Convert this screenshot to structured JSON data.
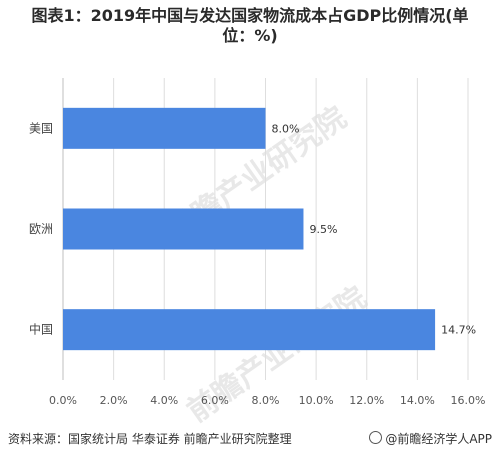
{
  "chart_data": {
    "type": "bar",
    "orientation": "horizontal",
    "title": "图表1：2019年中国与发达国家物流成本占GDP比例情况(单位：%)",
    "title_line1": "图表1：2019年中国与发达国家物流成本占GDP比例情况(单",
    "title_line2": "位：%)",
    "categories": [
      "美国",
      "欧洲",
      "中国"
    ],
    "values": [
      8.0,
      9.5,
      14.7
    ],
    "value_labels": [
      "8.0%",
      "9.5%",
      "14.7%"
    ],
    "xlim": [
      0,
      16
    ],
    "xticks": [
      "0.0%",
      "2.0%",
      "4.0%",
      "6.0%",
      "8.0%",
      "10.0%",
      "12.0%",
      "14.0%",
      "16.0%"
    ],
    "grid": true,
    "bar_color": "#4a86e0"
  },
  "footer": {
    "source": "资料来源：国家统计局 华泰证券 前瞻产业研究院整理",
    "brand": "@前瞻经济学人APP"
  },
  "watermark": "前瞻产业研究院"
}
